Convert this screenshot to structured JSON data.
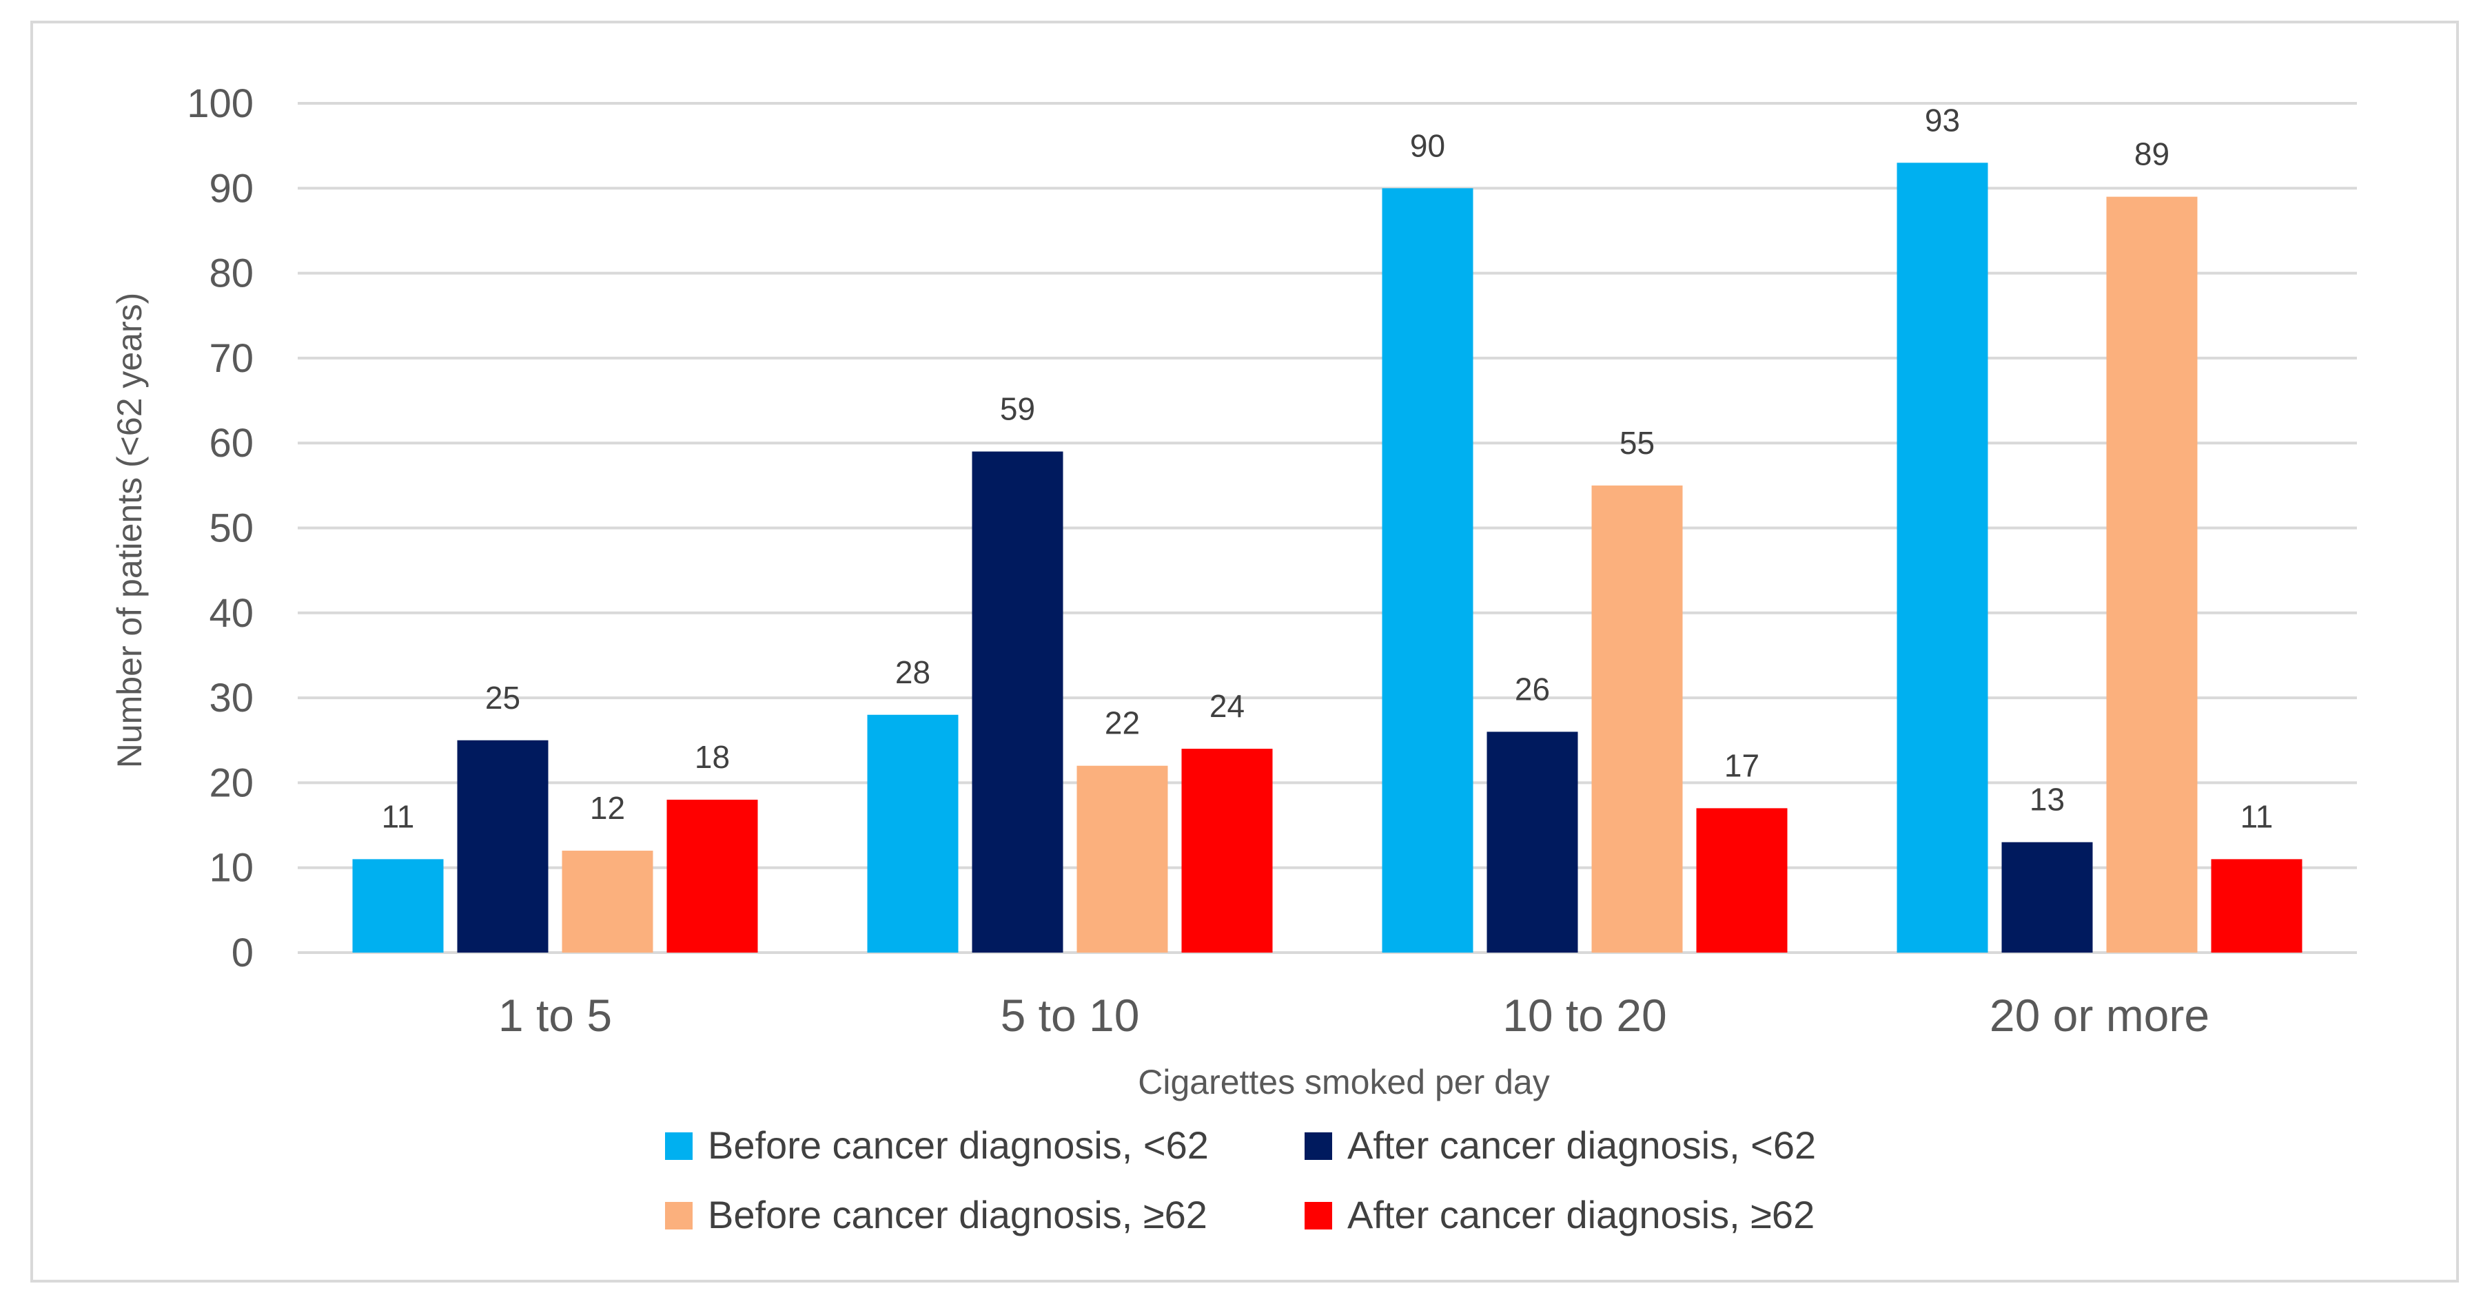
{
  "chart_data": {
    "type": "bar",
    "title": "",
    "xlabel": "Cigarettes smoked per day",
    "ylabel": "Number of patients (<62 years)",
    "ylim": [
      0,
      100
    ],
    "ytick_step": 10,
    "grid": true,
    "legend_position": "bottom",
    "categories": [
      "1 to 5",
      "5 to 10",
      "10 to 20",
      "20 or more"
    ],
    "series": [
      {
        "name": "Before cancer diagnosis, <62",
        "color": "#00B0F0",
        "values": [
          11,
          28,
          90,
          93
        ]
      },
      {
        "name": "After cancer diagnosis, <62",
        "color": "#001A5E",
        "values": [
          25,
          59,
          26,
          13
        ]
      },
      {
        "name": "Before cancer diagnosis, ≥62",
        "color": "#FBB07D",
        "values": [
          12,
          22,
          55,
          89
        ]
      },
      {
        "name": "After cancer diagnosis, ≥62",
        "color": "#FF0000",
        "values": [
          18,
          24,
          17,
          11
        ]
      }
    ],
    "gridline_color": "#d9d9d9"
  }
}
